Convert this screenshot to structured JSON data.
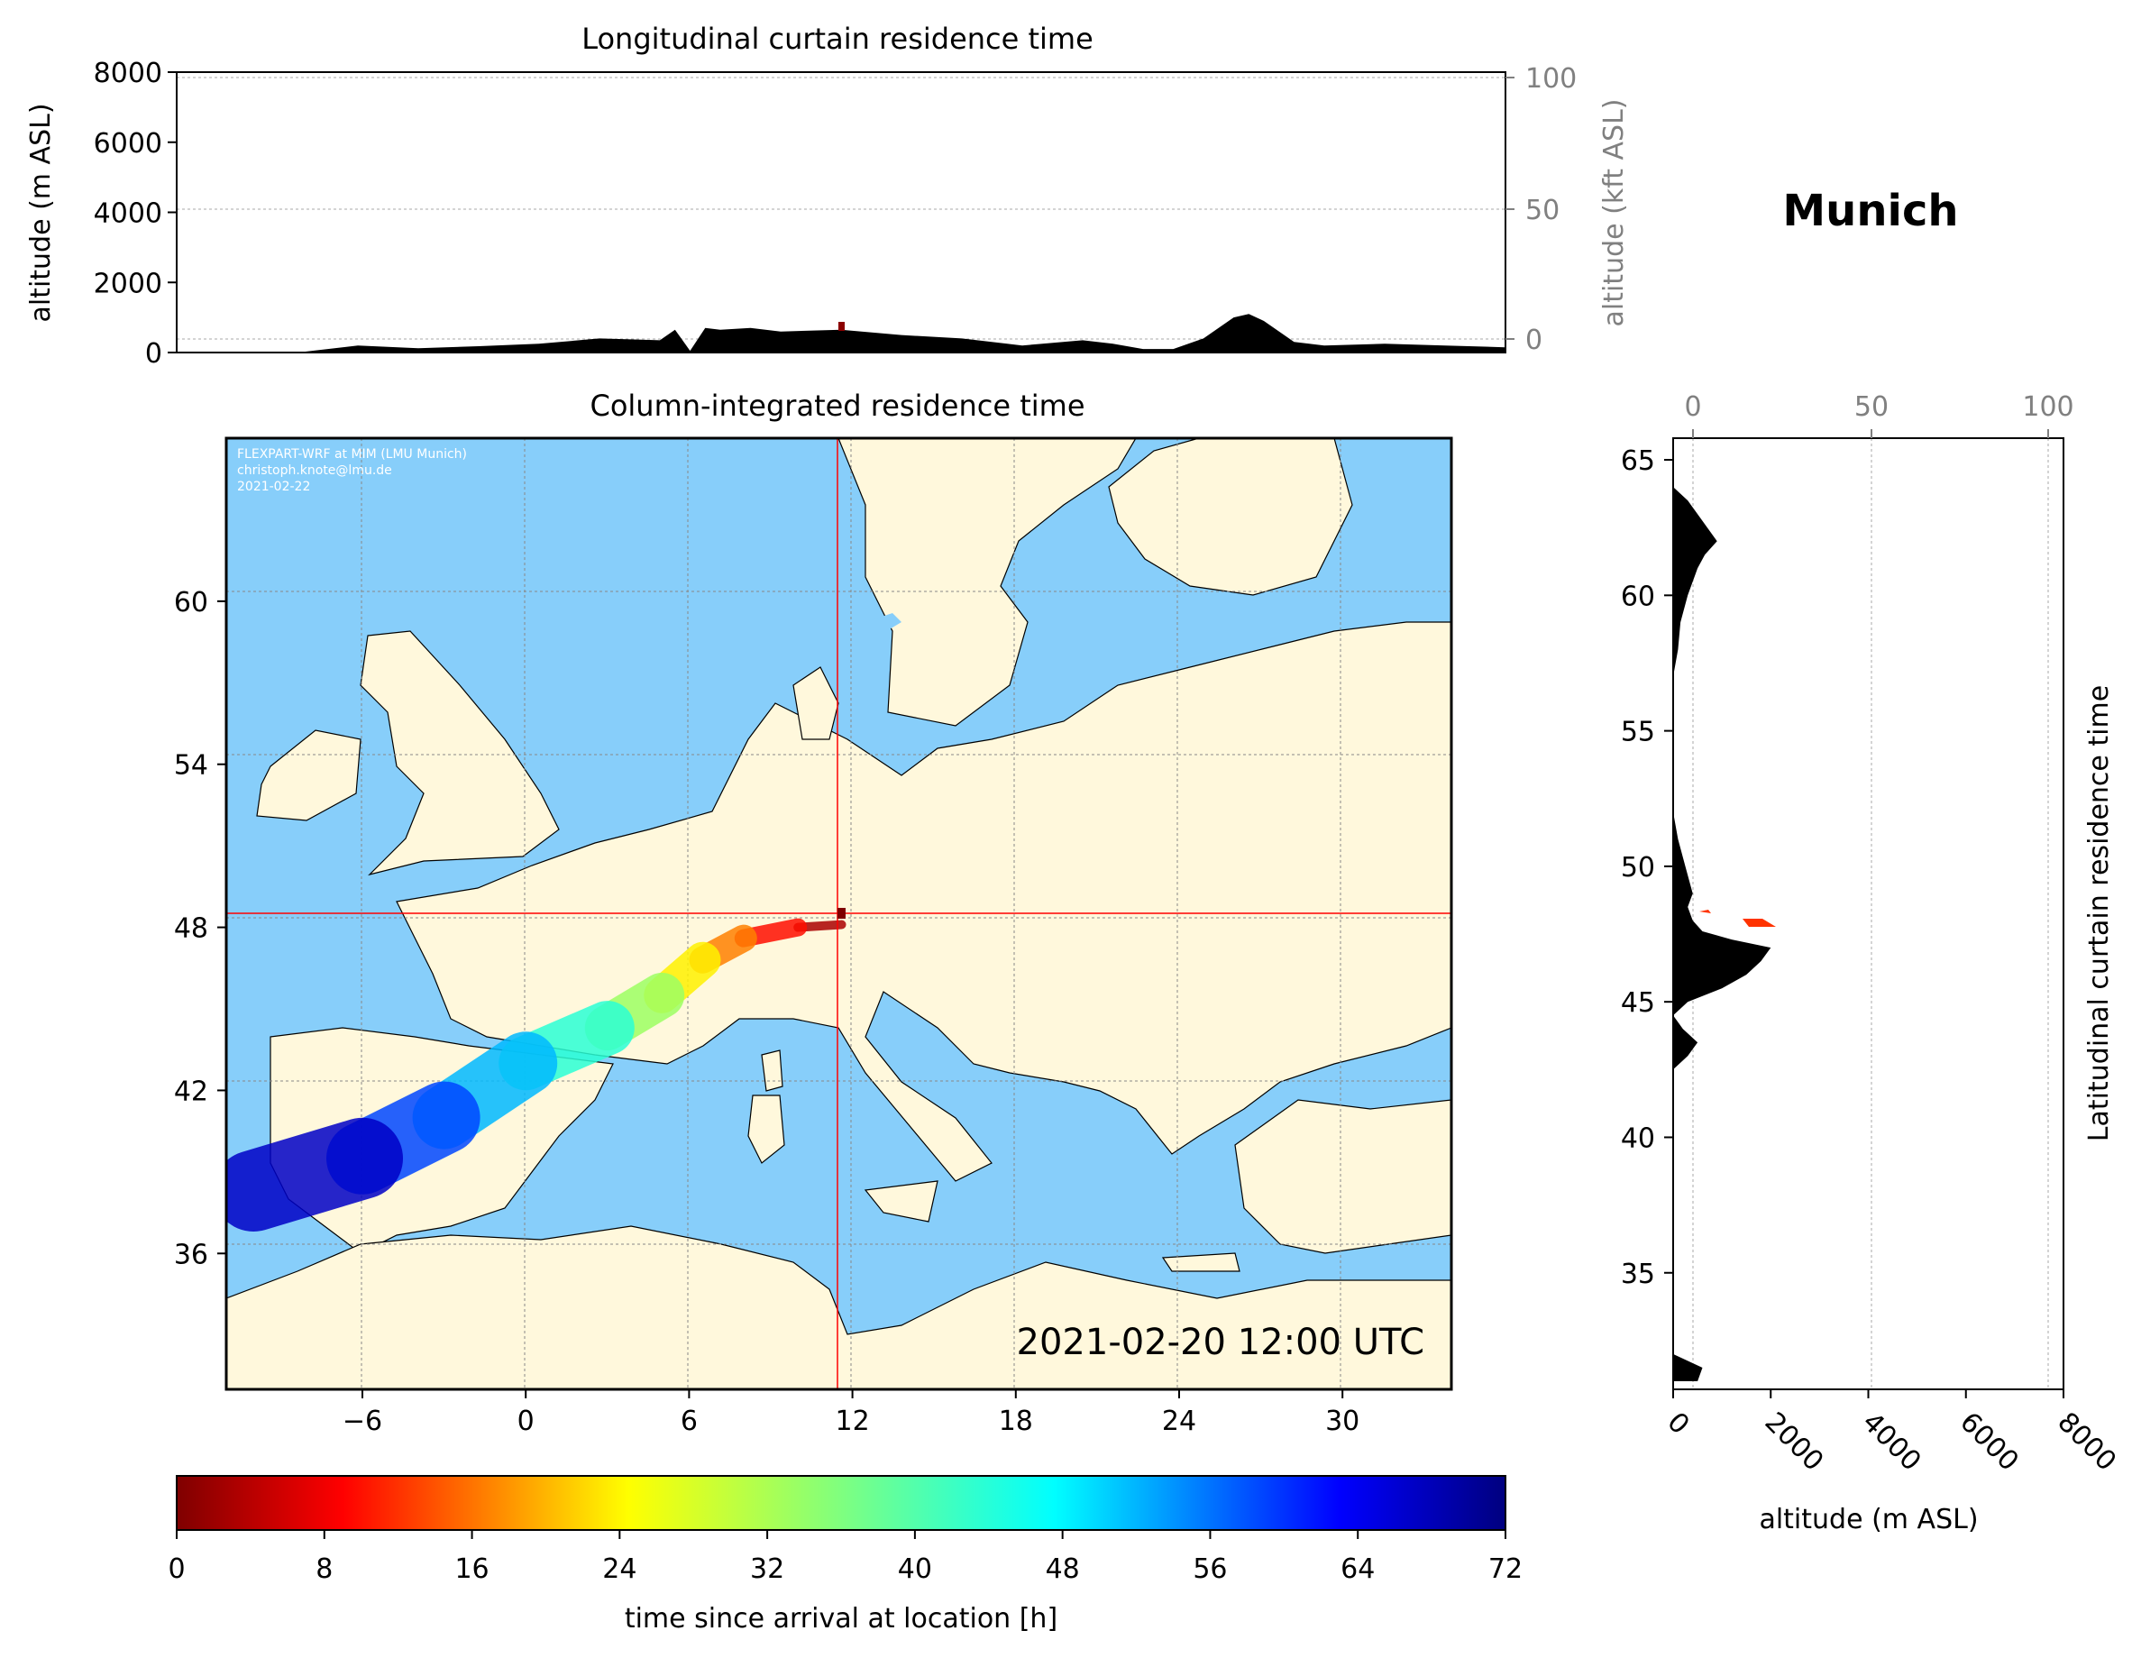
{
  "location_title": "Munich",
  "timestamp": "2021-02-20 12:00 UTC",
  "watermark": [
    "FLEXPART-WRF at MIM (LMU Munich)",
    "christoph.knote@lmu.de",
    "2021-02-22"
  ],
  "colors": {
    "ocean": "#87CEFA",
    "land": "#FFF8DC",
    "profile": "#000000",
    "crosshair": "#FF0000"
  },
  "chart_data": [
    {
      "type": "area",
      "title": "Longitudinal curtain residence time",
      "ylabel": "altitude (m ASL)",
      "y2label": "altitude (kft ASL)",
      "ylim": [
        0,
        8000
      ],
      "y_ticks": [
        "0",
        "2000",
        "4000",
        "6000",
        "8000"
      ],
      "y2_ticks": [
        "0",
        "50",
        "100"
      ],
      "x": [
        -10,
        -6,
        -4,
        -2,
        0,
        2,
        4,
        6,
        6.5,
        7,
        7.5,
        8,
        9,
        10,
        12,
        14,
        16,
        18,
        20,
        21,
        22,
        23,
        24,
        25,
        25.5,
        26,
        27,
        28,
        30,
        32,
        34
      ],
      "values": [
        0,
        0,
        200,
        120,
        180,
        250,
        400,
        350,
        650,
        50,
        700,
        650,
        700,
        600,
        650,
        500,
        400,
        200,
        350,
        250,
        100,
        100,
        400,
        1000,
        1100,
        900,
        300,
        200,
        250,
        200,
        150
      ]
    },
    {
      "type": "heatmap",
      "title": "Column-integrated residence time",
      "x_ticks": [
        "−6",
        "0",
        "6",
        "12",
        "18",
        "24",
        "30"
      ],
      "y_ticks": [
        "36",
        "42",
        "48",
        "54",
        "60"
      ],
      "xlim": [
        -11,
        34
      ],
      "ylim": [
        31,
        66
      ],
      "receptor": {
        "lon": 11.6,
        "lat": 48.2
      },
      "colorbar": {
        "label": "time since arrival at location [h]",
        "range": [
          0,
          72
        ],
        "ticks": [
          "0",
          "8",
          "16",
          "24",
          "32",
          "40",
          "48",
          "56",
          "64",
          "72"
        ]
      },
      "trajectory": [
        {
          "lon": 11.6,
          "lat": 48.1,
          "t": 0
        },
        {
          "lon": 10,
          "lat": 48.0,
          "t": 6
        },
        {
          "lon": 8,
          "lat": 47.6,
          "t": 14
        },
        {
          "lon": 6.5,
          "lat": 46.8,
          "t": 22
        },
        {
          "lon": 5,
          "lat": 45.5,
          "t": 30
        },
        {
          "lon": 3,
          "lat": 44.3,
          "t": 38
        },
        {
          "lon": 0,
          "lat": 43.0,
          "t": 46
        },
        {
          "lon": -3,
          "lat": 41.0,
          "t": 54
        },
        {
          "lon": -6,
          "lat": 39.5,
          "t": 62
        },
        {
          "lon": -10,
          "lat": 38.3,
          "t": 72
        }
      ]
    },
    {
      "type": "area",
      "title": "Latitudinal curtain residence time",
      "xlabel": "altitude (m ASL)",
      "x_ticks": [
        "0",
        "2000",
        "4000",
        "6000",
        "8000"
      ],
      "x2_ticks": [
        "0",
        "50",
        "100"
      ],
      "y_ticks": [
        "35",
        "40",
        "45",
        "50",
        "55",
        "60",
        "65"
      ],
      "lat": [
        31,
        31.5,
        32,
        33,
        35,
        37,
        40,
        42.5,
        43,
        43.5,
        44,
        44.5,
        45,
        45.5,
        46,
        46.5,
        47,
        47.3,
        47.6,
        48,
        48.5,
        49,
        50,
        51,
        52,
        53,
        55,
        57,
        58,
        59,
        60,
        61,
        61.5,
        62,
        62.5,
        63,
        63.5,
        64,
        65
      ],
      "values": [
        500,
        600,
        0,
        0,
        0,
        0,
        0,
        0,
        300,
        500,
        200,
        0,
        300,
        1000,
        1500,
        1800,
        2000,
        1200,
        600,
        400,
        300,
        400,
        250,
        100,
        0,
        0,
        0,
        0,
        100,
        150,
        300,
        500,
        650,
        900,
        700,
        500,
        300,
        0,
        0
      ]
    }
  ]
}
